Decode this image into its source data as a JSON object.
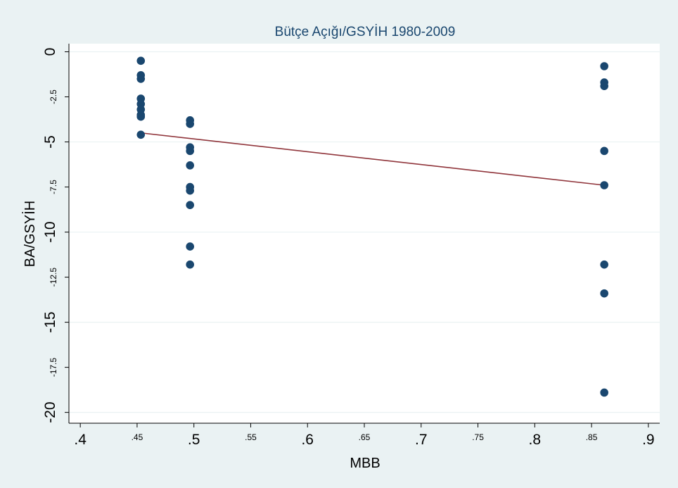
{
  "chart_data": {
    "type": "scatter",
    "title": "Bütçe Açığı/GSYİH 1980-2009",
    "xlabel": "MBB",
    "ylabel": "BA/GSYİH",
    "xlim": [
      0.39,
      0.91
    ],
    "ylim": [
      -20.6,
      0.45
    ],
    "x_ticks": [
      {
        "value": 0.4,
        "label": ".4",
        "major": true
      },
      {
        "value": 0.45,
        "label": ".45",
        "major": false
      },
      {
        "value": 0.5,
        "label": ".5",
        "major": true
      },
      {
        "value": 0.55,
        "label": ".55",
        "major": false
      },
      {
        "value": 0.6,
        "label": ".6",
        "major": true
      },
      {
        "value": 0.65,
        "label": ".65",
        "major": false
      },
      {
        "value": 0.7,
        "label": ".7",
        "major": true
      },
      {
        "value": 0.75,
        "label": ".75",
        "major": false
      },
      {
        "value": 0.8,
        "label": ".8",
        "major": true
      },
      {
        "value": 0.85,
        "label": ".85",
        "major": false
      },
      {
        "value": 0.9,
        "label": ".9",
        "major": true
      }
    ],
    "y_ticks": [
      {
        "value": 0,
        "label": "0",
        "major": true
      },
      {
        "value": -2.5,
        "label": "-2.5",
        "major": false
      },
      {
        "value": -5,
        "label": "-5",
        "major": true
      },
      {
        "value": -7.5,
        "label": "-7.5",
        "major": false
      },
      {
        "value": -10,
        "label": "-10",
        "major": true
      },
      {
        "value": -12.5,
        "label": "-12.5",
        "major": false
      },
      {
        "value": -15,
        "label": "-15",
        "major": true
      },
      {
        "value": -17.5,
        "label": "-17.5",
        "major": false
      },
      {
        "value": -20,
        "label": "-20",
        "major": true
      }
    ],
    "grid": true,
    "colors": {
      "plot_background": "#ffffff",
      "outer_background": "#eaf2f3",
      "points": "#1a476f",
      "fit_line": "#90353b"
    },
    "series": [
      {
        "type": "scatter",
        "points": [
          {
            "x": 0.4533,
            "y": -0.5
          },
          {
            "x": 0.4533,
            "y": -1.3
          },
          {
            "x": 0.4533,
            "y": -1.5
          },
          {
            "x": 0.4533,
            "y": -2.6
          },
          {
            "x": 0.4533,
            "y": -2.9
          },
          {
            "x": 0.4533,
            "y": -3.2
          },
          {
            "x": 0.4533,
            "y": -3.5
          },
          {
            "x": 0.4533,
            "y": -3.6
          },
          {
            "x": 0.4533,
            "y": -4.6
          },
          {
            "x": 0.4966,
            "y": -3.8
          },
          {
            "x": 0.4966,
            "y": -4.0
          },
          {
            "x": 0.4966,
            "y": -5.3
          },
          {
            "x": 0.4966,
            "y": -5.5
          },
          {
            "x": 0.4966,
            "y": -6.3
          },
          {
            "x": 0.4966,
            "y": -7.5
          },
          {
            "x": 0.4966,
            "y": -7.7
          },
          {
            "x": 0.4966,
            "y": -8.5
          },
          {
            "x": 0.4966,
            "y": -10.8
          },
          {
            "x": 0.4966,
            "y": -11.8
          },
          {
            "x": 0.8612,
            "y": -0.8
          },
          {
            "x": 0.8612,
            "y": -1.7
          },
          {
            "x": 0.8612,
            "y": -1.9
          },
          {
            "x": 0.8612,
            "y": -5.5
          },
          {
            "x": 0.8612,
            "y": -7.4
          },
          {
            "x": 0.8612,
            "y": -11.8
          },
          {
            "x": 0.8612,
            "y": -13.4
          },
          {
            "x": 0.8612,
            "y": -18.9
          }
        ]
      },
      {
        "type": "line",
        "points": [
          {
            "x": 0.4533,
            "y": -4.5
          },
          {
            "x": 0.8612,
            "y": -7.4
          }
        ]
      }
    ]
  }
}
